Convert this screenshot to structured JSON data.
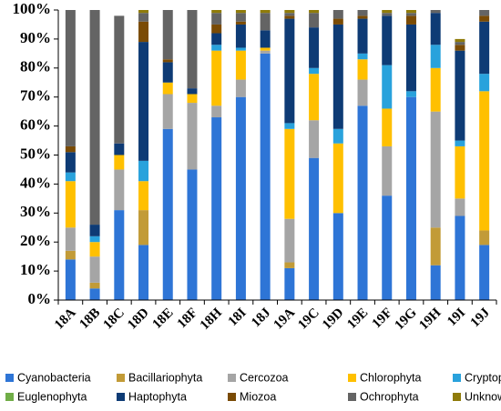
{
  "chart_data": {
    "type": "bar",
    "stacked": true,
    "ylim": [
      0,
      100
    ],
    "yticks": [
      0,
      10,
      20,
      30,
      40,
      50,
      60,
      70,
      80,
      90,
      100
    ],
    "ytick_labels": [
      "0%",
      "10%",
      "20%",
      "30%",
      "40%",
      "50%",
      "60%",
      "70%",
      "80%",
      "90%",
      "100%"
    ],
    "categories": [
      "18A",
      "18B",
      "18C",
      "18D",
      "18E",
      "18F",
      "18H",
      "18I",
      "18J",
      "19A",
      "19C",
      "19D",
      "19E",
      "19F",
      "19G",
      "19H",
      "19I",
      "19J"
    ],
    "legend_position": "bottom",
    "grid": false,
    "series": [
      {
        "name": "Cyanobacteria",
        "color": "#2e75d6",
        "values": [
          14,
          4,
          31,
          19,
          59,
          45,
          63,
          70,
          85,
          11,
          49,
          30,
          67,
          36,
          70,
          12,
          29,
          19
        ]
      },
      {
        "name": "Bacillariophyta",
        "color": "#c29b37",
        "values": [
          3,
          2,
          0,
          12,
          0,
          0,
          0,
          0,
          0,
          2,
          0,
          0,
          0,
          0,
          0,
          13,
          0,
          5
        ]
      },
      {
        "name": "Cercozoa",
        "color": "#a5a5a5",
        "values": [
          8,
          9,
          14,
          0,
          12,
          23,
          4,
          6,
          1,
          15,
          13,
          0,
          9,
          17,
          0,
          40,
          6,
          0
        ]
      },
      {
        "name": "Chlorophyta",
        "color": "#ffc000",
        "values": [
          16,
          5,
          5,
          10,
          4,
          3,
          19,
          10,
          1,
          31,
          16,
          24,
          7,
          13,
          0,
          15,
          18,
          48
        ]
      },
      {
        "name": "Cryptophyta",
        "color": "#29a2dc",
        "values": [
          3,
          2,
          0,
          7,
          0,
          0,
          2,
          1,
          0,
          2,
          2,
          5,
          2,
          15,
          2,
          8,
          2,
          6
        ]
      },
      {
        "name": "Euglenophyta",
        "color": "#70ad47",
        "values": [
          0,
          0,
          0,
          0,
          0,
          0,
          0,
          0,
          0,
          0,
          0,
          0,
          0,
          0,
          0,
          0,
          0,
          0
        ]
      },
      {
        "name": "Haptophyta",
        "color": "#0e3b75",
        "values": [
          7,
          4,
          4,
          41,
          7,
          2,
          4,
          8,
          6,
          36,
          14,
          36,
          12,
          17,
          23,
          11,
          31,
          18
        ]
      },
      {
        "name": "Miozoa",
        "color": "#7a4b05",
        "values": [
          2,
          0,
          0,
          7,
          1,
          0,
          3,
          1,
          0,
          1,
          0,
          2,
          1,
          0,
          3,
          0,
          2,
          2
        ]
      },
      {
        "name": "Ochrophyta",
        "color": "#646464",
        "values": [
          47,
          74,
          44,
          3,
          17,
          27,
          4,
          3,
          6,
          1,
          5,
          3,
          2,
          1,
          1,
          1,
          1,
          2
        ]
      },
      {
        "name": "Unknown",
        "color": "#8f7b0a",
        "values": [
          0,
          0,
          0,
          1,
          0,
          0,
          1,
          1,
          1,
          1,
          1,
          0,
          0,
          1,
          1,
          0,
          1,
          0
        ]
      }
    ]
  },
  "colors": {
    "axis": "#000000",
    "background": "#ffffff"
  }
}
